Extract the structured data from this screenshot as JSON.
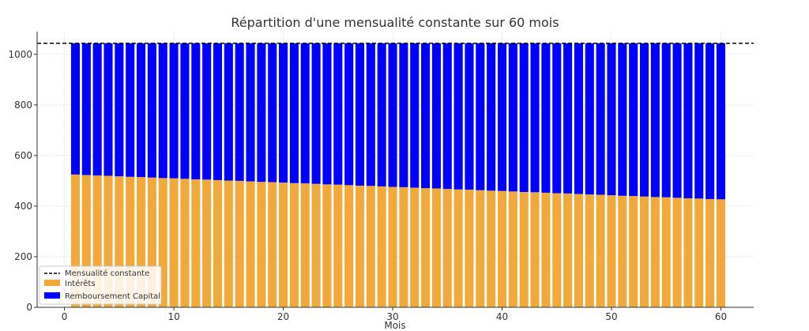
{
  "chart_data": {
    "type": "bar",
    "stacked": true,
    "title": "Répartition d'une mensualité constante sur 60 mois",
    "xlabel": "Mois",
    "ylabel": "",
    "xlim": [
      -2.5,
      63
    ],
    "ylim": [
      0,
      1090
    ],
    "xticks": [
      0,
      10,
      20,
      30,
      40,
      50,
      60
    ],
    "yticks": [
      0,
      200,
      400,
      600,
      800,
      1000
    ],
    "grid": true,
    "legend_position": "bottom-left",
    "colors": {
      "interets": "#f2a93b",
      "capital": "#0000ff",
      "line": "#000000"
    },
    "constant_payment": {
      "name": "Mensualité constante",
      "value": 1044
    },
    "x": [
      1,
      2,
      3,
      4,
      5,
      6,
      7,
      8,
      9,
      10,
      11,
      12,
      13,
      14,
      15,
      16,
      17,
      18,
      19,
      20,
      21,
      22,
      23,
      24,
      25,
      26,
      27,
      28,
      29,
      30,
      31,
      32,
      33,
      34,
      35,
      36,
      37,
      38,
      39,
      40,
      41,
      42,
      43,
      44,
      45,
      46,
      47,
      48,
      49,
      50,
      51,
      52,
      53,
      54,
      55,
      56,
      57,
      58,
      59,
      60
    ],
    "series": [
      {
        "name": "Intérêts",
        "values": [
          525,
          523,
          521,
          520,
          518,
          516,
          515,
          513,
          511,
          510,
          508,
          506,
          505,
          503,
          501,
          500,
          498,
          496,
          495,
          493,
          491,
          490,
          488,
          486,
          485,
          483,
          481,
          480,
          478,
          476,
          475,
          473,
          471,
          470,
          468,
          466,
          465,
          463,
          461,
          460,
          458,
          456,
          455,
          453,
          451,
          450,
          448,
          446,
          445,
          443,
          441,
          440,
          438,
          436,
          435,
          433,
          431,
          430,
          428,
          427
        ]
      },
      {
        "name": "Remboursement Capital",
        "values": [
          519,
          521,
          523,
          524,
          526,
          528,
          529,
          531,
          533,
          534,
          536,
          538,
          539,
          541,
          543,
          544,
          546,
          548,
          549,
          551,
          553,
          554,
          556,
          558,
          559,
          561,
          563,
          564,
          566,
          568,
          569,
          571,
          573,
          574,
          576,
          578,
          579,
          581,
          583,
          584,
          586,
          588,
          589,
          591,
          593,
          594,
          596,
          598,
          599,
          601,
          603,
          604,
          606,
          608,
          609,
          611,
          613,
          614,
          616,
          617
        ]
      }
    ]
  }
}
